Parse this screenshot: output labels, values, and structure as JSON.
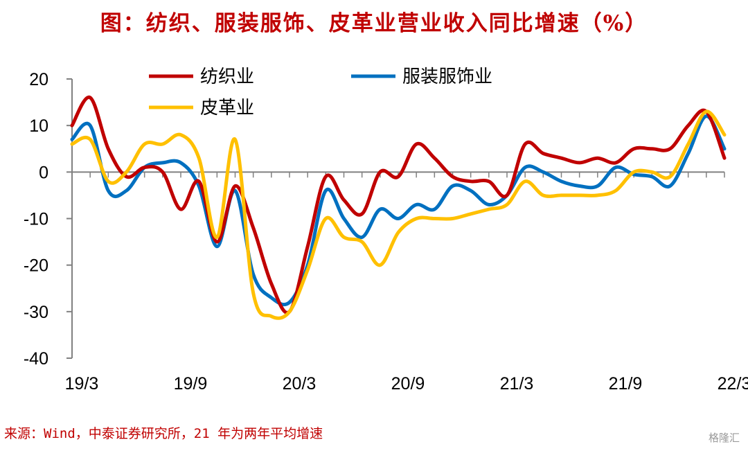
{
  "title": "图：纺织、服装服饰、皮革业营业收入同比增速（%）",
  "source": "来源：Wind，中泰证券研究所，21 年为两年平均增速",
  "watermark": "格隆汇",
  "colors": {
    "title": "#c00000",
    "source": "#c00000",
    "axis": "#808080"
  },
  "chart_data": {
    "type": "line",
    "title": "图：纺织、服装服饰、皮革业营业收入同比增速（%）",
    "xlabel": "",
    "ylabel": "",
    "ylim": [
      -40,
      20
    ],
    "yticks": [
      20,
      10,
      0,
      -10,
      -20,
      -30,
      -40
    ],
    "x_tick_labels": [
      "19/3",
      "19/9",
      "20/3",
      "20/9",
      "21/3",
      "21/9",
      "22/3"
    ],
    "x": [
      "19/3",
      "19/4",
      "19/5",
      "19/6",
      "19/7",
      "19/8",
      "19/9",
      "19/10",
      "19/11",
      "19/12",
      "20/1",
      "20/2",
      "20/3",
      "20/4",
      "20/5",
      "20/6",
      "20/7",
      "20/8",
      "20/9",
      "20/10",
      "20/11",
      "20/12",
      "21/1",
      "21/2",
      "21/3",
      "21/4",
      "21/5",
      "21/6",
      "21/7",
      "21/8",
      "21/9",
      "21/10",
      "21/11",
      "21/12",
      "22/1",
      "22/2",
      "22/3"
    ],
    "legend_position": "top",
    "series": [
      {
        "name": "纺织业",
        "color": "#c00000",
        "values": [
          10,
          16,
          5,
          -1,
          1,
          0,
          -8,
          -2,
          -15,
          -3,
          -12,
          -24,
          -30,
          -16,
          -1,
          -6,
          -9,
          0,
          -1,
          6,
          3,
          -1,
          -2,
          -2,
          -5,
          6,
          4,
          3,
          2,
          3,
          2,
          5,
          5,
          5,
          10,
          13,
          3
        ]
      },
      {
        "name": "服装服饰业",
        "color": "#0070c0",
        "values": [
          7,
          10,
          -4,
          -4,
          1,
          2,
          2,
          -3,
          -16,
          -4,
          -22,
          -27,
          -28,
          -20,
          -4,
          -10,
          -14,
          -8,
          -10,
          -7,
          -8,
          -3,
          -4,
          -7,
          -5,
          1,
          0,
          -2,
          -3,
          -3,
          1,
          -0.5,
          -1,
          -3,
          4,
          12,
          5
        ]
      },
      {
        "name": "皮革业",
        "color": "#ffc000",
        "values": [
          6,
          7,
          -2,
          0,
          6,
          6,
          8,
          3,
          -14,
          7,
          -26,
          -31,
          -30,
          -21,
          -10,
          -14,
          -15,
          -20,
          -13,
          -10,
          -10,
          -10,
          -9,
          -8,
          -7,
          -2,
          -5,
          -5,
          -5,
          -5,
          -4,
          0,
          0,
          -1,
          6,
          13,
          8
        ]
      }
    ]
  }
}
